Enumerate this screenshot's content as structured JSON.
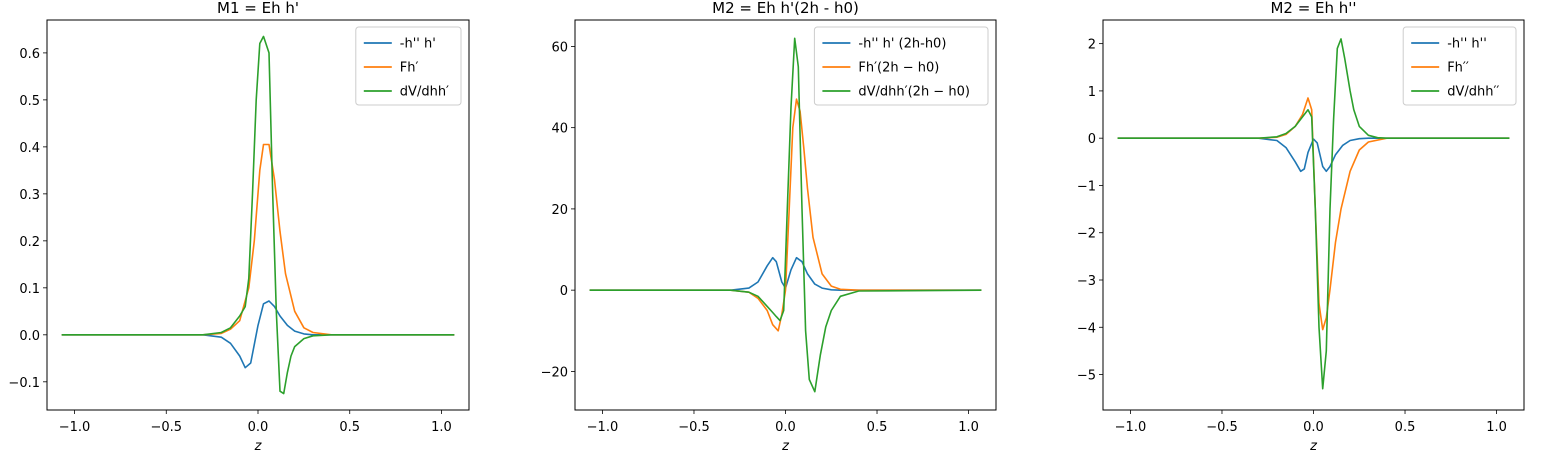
{
  "chart_data": [
    {
      "type": "line",
      "title": "M1 = Eh h'",
      "xlabel": "z",
      "ylabel": "",
      "xlim": [
        -1.15,
        1.15
      ],
      "ylim": [
        -0.16,
        0.67
      ],
      "xticks": [
        -1.0,
        -0.5,
        0.0,
        0.5,
        1.0
      ],
      "xtick_labels": [
        "−1.0",
        "−0.5",
        "0.0",
        "0.5",
        "1.0"
      ],
      "yticks": [
        -0.1,
        0.0,
        0.1,
        0.2,
        0.3,
        0.4,
        0.5,
        0.6
      ],
      "ytick_labels": [
        "−0.1",
        "0.0",
        "0.1",
        "0.2",
        "0.3",
        "0.4",
        "0.5",
        "0.6"
      ],
      "legend_position": "top-right",
      "series": [
        {
          "name": "-h'' h'",
          "color": "#1f77b4",
          "x": [
            -1.07,
            -0.3,
            -0.2,
            -0.15,
            -0.1,
            -0.07,
            -0.04,
            0.0,
            0.03,
            0.06,
            0.09,
            0.12,
            0.16,
            0.2,
            0.25,
            0.3,
            0.4,
            1.07
          ],
          "y": [
            0.0,
            0.0,
            -0.005,
            -0.018,
            -0.045,
            -0.07,
            -0.06,
            0.02,
            0.066,
            0.072,
            0.06,
            0.04,
            0.02,
            0.008,
            0.002,
            0.0,
            0.0,
            0.0
          ]
        },
        {
          "name": "Fh′",
          "color": "#ff7f0e",
          "x": [
            -1.07,
            -0.3,
            -0.2,
            -0.15,
            -0.1,
            -0.05,
            -0.02,
            0.01,
            0.03,
            0.06,
            0.09,
            0.12,
            0.15,
            0.2,
            0.25,
            0.3,
            0.4,
            1.07
          ],
          "y": [
            0.0,
            0.0,
            0.003,
            0.012,
            0.03,
            0.1,
            0.2,
            0.35,
            0.405,
            0.405,
            0.33,
            0.22,
            0.13,
            0.05,
            0.015,
            0.005,
            0.0,
            0.0
          ]
        },
        {
          "name": "dV/dhh′",
          "color": "#2ca02c",
          "x": [
            -1.07,
            -0.3,
            -0.2,
            -0.15,
            -0.1,
            -0.07,
            -0.05,
            -0.03,
            -0.01,
            0.01,
            0.03,
            0.06,
            0.08,
            0.1,
            0.12,
            0.14,
            0.16,
            0.18,
            0.2,
            0.25,
            0.3,
            0.4,
            1.07
          ],
          "y": [
            0.0,
            0.0,
            0.005,
            0.015,
            0.04,
            0.06,
            0.12,
            0.3,
            0.5,
            0.62,
            0.635,
            0.6,
            0.3,
            0.05,
            -0.12,
            -0.125,
            -0.08,
            -0.045,
            -0.025,
            -0.008,
            -0.002,
            0.0,
            0.0
          ]
        }
      ]
    },
    {
      "type": "line",
      "title": "M2 = Eh h'(2h - h0)",
      "xlabel": "z",
      "ylabel": "",
      "xlim": [
        -1.15,
        1.15
      ],
      "ylim": [
        -29.5,
        66.5
      ],
      "xticks": [
        -1.0,
        -0.5,
        0.0,
        0.5,
        1.0
      ],
      "xtick_labels": [
        "−1.0",
        "−0.5",
        "0.0",
        "0.5",
        "1.0"
      ],
      "yticks": [
        -20,
        0,
        20,
        40,
        60
      ],
      "ytick_labels": [
        "−20",
        "0",
        "20",
        "40",
        "60"
      ],
      "legend_position": "top-right",
      "series": [
        {
          "name": "-h'' h' (2h-h0)",
          "color": "#1f77b4",
          "x": [
            -1.07,
            -0.3,
            -0.2,
            -0.15,
            -0.1,
            -0.07,
            -0.05,
            -0.02,
            0.0,
            0.03,
            0.06,
            0.09,
            0.12,
            0.16,
            0.2,
            0.25,
            0.3,
            0.4,
            1.07
          ],
          "y": [
            0.0,
            0.0,
            0.5,
            2.0,
            6.0,
            8.0,
            7.0,
            2.0,
            0.5,
            5.0,
            8.0,
            7.0,
            4.0,
            1.5,
            0.5,
            0.1,
            0.0,
            0.0,
            0.0
          ]
        },
        {
          "name": "Fh′(2h − h0)",
          "color": "#ff7f0e",
          "x": [
            -1.07,
            -0.3,
            -0.2,
            -0.15,
            -0.1,
            -0.07,
            -0.04,
            -0.02,
            0.0,
            0.02,
            0.04,
            0.06,
            0.08,
            0.1,
            0.12,
            0.15,
            0.2,
            0.25,
            0.3,
            0.4,
            1.07
          ],
          "y": [
            0.0,
            0.0,
            -0.5,
            -2.0,
            -5.0,
            -8.5,
            -10.0,
            -6.0,
            0.0,
            20.0,
            40.0,
            47.0,
            44.0,
            35.0,
            25.0,
            13.0,
            4.0,
            1.0,
            0.2,
            0.0,
            0.0
          ]
        },
        {
          "name": "dV/dhh′(2h − h0)",
          "color": "#2ca02c",
          "x": [
            -1.07,
            -0.3,
            -0.2,
            -0.15,
            -0.1,
            -0.07,
            -0.05,
            -0.03,
            -0.01,
            0.01,
            0.03,
            0.05,
            0.07,
            0.09,
            0.11,
            0.13,
            0.16,
            0.19,
            0.22,
            0.25,
            0.3,
            0.4,
            1.07
          ],
          "y": [
            0.0,
            0.0,
            -0.5,
            -1.5,
            -4.0,
            -5.5,
            -6.5,
            -7.5,
            -5.0,
            20.0,
            45.0,
            62.0,
            55.0,
            20.0,
            -10.0,
            -22.0,
            -25.0,
            -16.0,
            -9.0,
            -5.0,
            -1.5,
            -0.2,
            0.0
          ]
        }
      ]
    },
    {
      "type": "line",
      "title": "M2 = Eh h''",
      "xlabel": "z",
      "ylabel": "",
      "xlim": [
        -1.15,
        1.15
      ],
      "ylim": [
        -5.75,
        2.5
      ],
      "xticks": [
        -1.0,
        -0.5,
        0.0,
        0.5,
        1.0
      ],
      "xtick_labels": [
        "−1.0",
        "−0.5",
        "0.0",
        "0.5",
        "1.0"
      ],
      "yticks": [
        -5,
        -4,
        -3,
        -2,
        -1,
        0,
        1,
        2
      ],
      "ytick_labels": [
        "−5",
        "−4",
        "−3",
        "−2",
        "−1",
        "0",
        "1",
        "2"
      ],
      "legend_position": "top-right",
      "series": [
        {
          "name": "-h'' h''",
          "color": "#1f77b4",
          "x": [
            -1.07,
            -0.3,
            -0.2,
            -0.15,
            -0.1,
            -0.07,
            -0.05,
            -0.03,
            0.0,
            0.02,
            0.05,
            0.07,
            0.09,
            0.12,
            0.16,
            0.2,
            0.25,
            0.3,
            1.07
          ],
          "y": [
            0.0,
            0.0,
            -0.05,
            -0.2,
            -0.5,
            -0.7,
            -0.65,
            -0.3,
            -0.02,
            -0.1,
            -0.6,
            -0.7,
            -0.6,
            -0.35,
            -0.15,
            -0.05,
            -0.01,
            0.0,
            0.0
          ]
        },
        {
          "name": "Fh′′",
          "color": "#ff7f0e",
          "x": [
            -1.07,
            -0.3,
            -0.2,
            -0.15,
            -0.1,
            -0.06,
            -0.03,
            -0.01,
            0.01,
            0.03,
            0.05,
            0.07,
            0.09,
            0.12,
            0.15,
            0.2,
            0.25,
            0.3,
            0.4,
            1.07
          ],
          "y": [
            0.0,
            0.0,
            0.02,
            0.08,
            0.25,
            0.5,
            0.85,
            0.6,
            -1.5,
            -3.5,
            -4.05,
            -3.8,
            -3.2,
            -2.2,
            -1.5,
            -0.7,
            -0.25,
            -0.08,
            0.0,
            0.0
          ]
        },
        {
          "name": "dV/dhh′′",
          "color": "#2ca02c",
          "x": [
            -1.07,
            -0.3,
            -0.2,
            -0.15,
            -0.1,
            -0.06,
            -0.03,
            -0.01,
            0.01,
            0.03,
            0.05,
            0.07,
            0.09,
            0.11,
            0.13,
            0.15,
            0.17,
            0.2,
            0.22,
            0.25,
            0.3,
            0.35,
            0.4,
            1.07
          ],
          "y": [
            0.0,
            0.0,
            0.03,
            0.1,
            0.25,
            0.45,
            0.6,
            0.45,
            -1.5,
            -4.0,
            -5.3,
            -4.5,
            -1.5,
            0.4,
            1.9,
            2.1,
            1.7,
            1.0,
            0.6,
            0.25,
            0.06,
            0.01,
            0.0,
            0.0
          ]
        }
      ]
    }
  ]
}
